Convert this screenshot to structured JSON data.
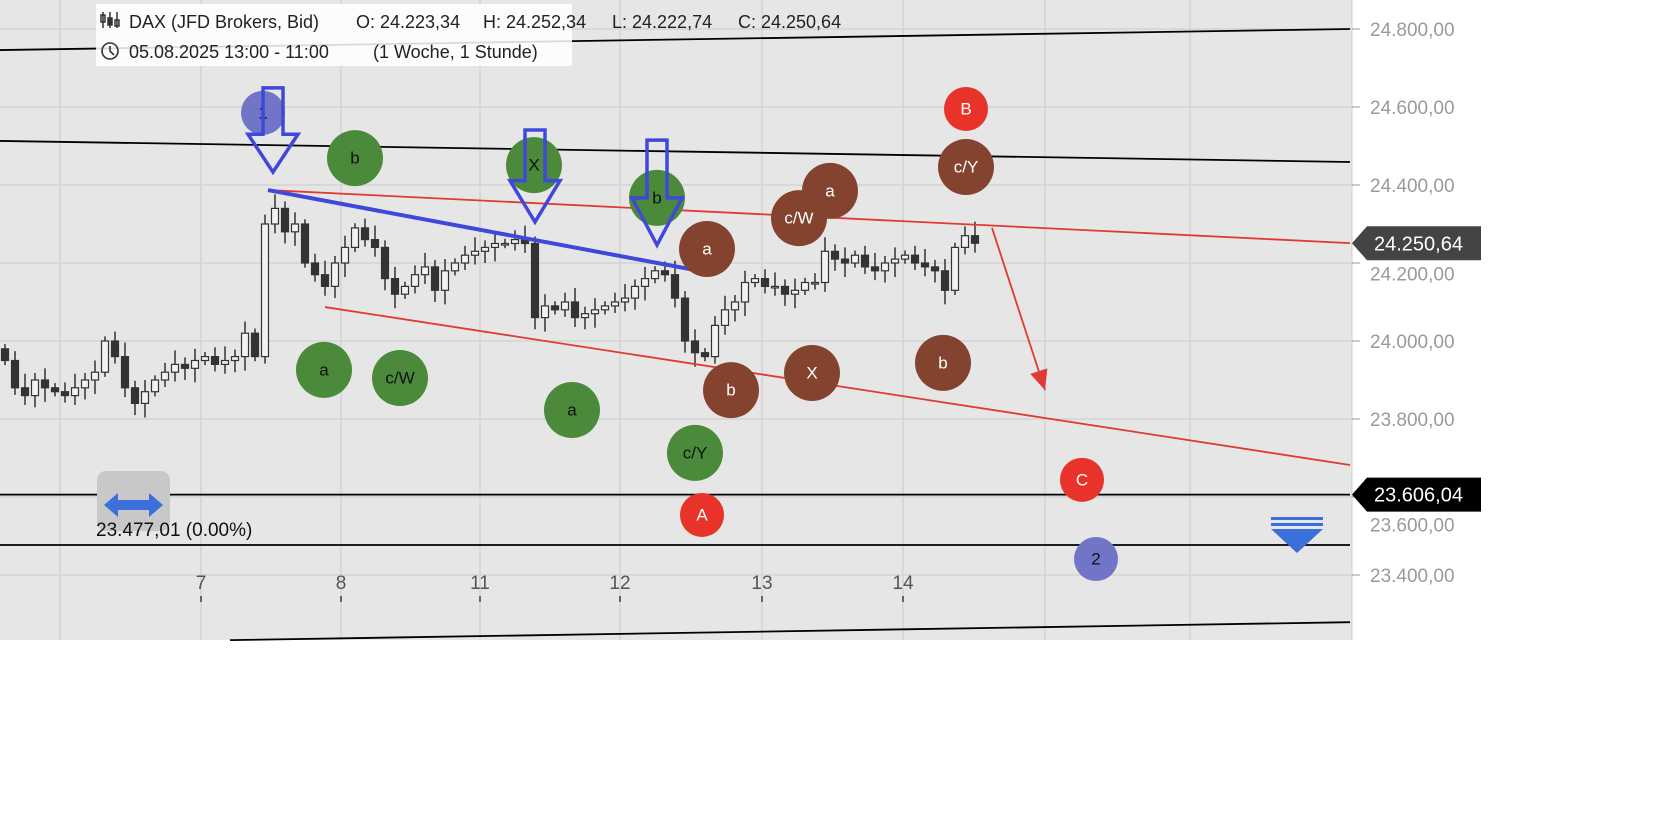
{
  "header": {
    "title": "DAX (JFD Brokers, Bid)",
    "open": "O: 24.223,34",
    "high": "H: 24.252,34",
    "low": "L: 24.222,74",
    "close": "C: 24.250,64",
    "range": "05.08.2025 13:00 - 11:00",
    "period": "(1 Woche, 1 Stunde)",
    "icons": [
      "candles-icon",
      "clock-icon"
    ]
  },
  "measure": {
    "label": "23.477,01 (0.00%)",
    "icon": "horizontal-double-arrow-icon"
  },
  "menu_icon": "collapse-menu-icon",
  "chart_data": {
    "type": "candlestick",
    "interval": "1 Stunde",
    "ylim": [
      23250,
      24830
    ],
    "y_ticks": [
      24800,
      24600,
      24400,
      24200,
      24000,
      23800,
      23600,
      23400
    ],
    "y_tick_labels": [
      "24.800,00",
      "24.600,00",
      "24.400,00",
      "24.200,00",
      "24.000,00",
      "23.800,00",
      "23.600,00",
      "23.400,00"
    ],
    "x_ticks": [
      {
        "label": "7",
        "index": 19.6
      },
      {
        "label": "8",
        "index": 33.6
      },
      {
        "label": "11",
        "index": 47.5
      },
      {
        "label": "12",
        "index": 61.5
      },
      {
        "label": "13",
        "index": 75.7
      },
      {
        "label": "14",
        "index": 89.8
      }
    ],
    "first_open": 23980,
    "closes": [
      23950,
      23880,
      23860,
      23900,
      23880,
      23870,
      23860,
      23880,
      23900,
      23920,
      24000,
      23960,
      23880,
      23840,
      23870,
      23900,
      23920,
      23940,
      23930,
      23950,
      23960,
      23940,
      23950,
      23960,
      24020,
      23960,
      24300,
      24340,
      24280,
      24300,
      24200,
      24170,
      24140,
      24200,
      24240,
      24290,
      24260,
      24240,
      24160,
      24120,
      24140,
      24170,
      24190,
      24130,
      24180,
      24200,
      24220,
      24230,
      24240,
      24250,
      24250,
      24260,
      24250,
      24060,
      24090,
      24080,
      24100,
      24060,
      24070,
      24080,
      24090,
      24100,
      24110,
      24140,
      24160,
      24180,
      24170,
      24110,
      24000,
      23970,
      23960,
      24040,
      24080,
      24100,
      24150,
      24160,
      24140,
      24140,
      24120,
      24130,
      24150,
      24150,
      24230,
      24210,
      24200,
      24220,
      24190,
      24180,
      24200,
      24210,
      24220,
      24200,
      24190,
      24180,
      24130,
      24240,
      24270,
      24250.64
    ],
    "price_tags": [
      {
        "value": 24250.64,
        "label": "24.250,64",
        "color": "#444444"
      },
      {
        "value": 23606.04,
        "label": "23.606,04",
        "color": "#000000"
      }
    ],
    "lines": [
      {
        "color": "#000000",
        "from": [
          -0.5,
          24746
        ],
        "to": [
          134.5,
          24800
        ]
      },
      {
        "color": "#000000",
        "from": [
          -0.5,
          24513
        ],
        "to": [
          134.5,
          24459
        ]
      },
      {
        "color": "#000000",
        "from": [
          -0.5,
          23606.04
        ],
        "to": [
          134.5,
          23606.04
        ]
      },
      {
        "color": "#000000",
        "from": [
          -0.5,
          23477.01
        ],
        "to": [
          134.5,
          23477.01
        ]
      },
      {
        "color": "#000000",
        "from": [
          22.5,
          23233
        ],
        "to": [
          134.5,
          23279
        ]
      },
      {
        "color": "#e03a32",
        "from": [
          26.3,
          24387
        ],
        "to": [
          134.5,
          24251
        ]
      },
      {
        "color": "#e03a32",
        "from": [
          32,
          24087
        ],
        "to": [
          134.5,
          23682
        ]
      },
      {
        "color": "#3f48d8",
        "from": [
          26.3,
          24387
        ],
        "to": [
          69,
          24182
        ],
        "width": 4
      }
    ],
    "forecast_arrow": {
      "color": "#e03a32",
      "from": [
        98.7,
        24290
      ],
      "to": [
        104,
        23874
      ]
    },
    "down_arrows": [
      {
        "index": 26.8,
        "top": 24649,
        "tip": 24433
      },
      {
        "index": 53,
        "top": 24541,
        "tip": 24305
      },
      {
        "index": 65.2,
        "top": 24515,
        "tip": 24246
      }
    ],
    "wave_labels": [
      {
        "text": "b",
        "index": 35,
        "price": 24469,
        "color": "#4a8a3a"
      },
      {
        "text": "X",
        "index": 52.9,
        "price": 24451,
        "color": "#4a8a3a"
      },
      {
        "text": "b",
        "index": 65.2,
        "price": 24367,
        "color": "#4a8a3a"
      },
      {
        "text": "a",
        "index": 31.9,
        "price": 23926,
        "color": "#4a8a3a"
      },
      {
        "text": "c/W",
        "index": 39.5,
        "price": 23905,
        "color": "#4a8a3a"
      },
      {
        "text": "a",
        "index": 56.7,
        "price": 23823,
        "color": "#4a8a3a"
      },
      {
        "text": "c/Y",
        "index": 69,
        "price": 23713,
        "color": "#4a8a3a"
      },
      {
        "text": "a",
        "index": 70.2,
        "price": 24236,
        "color": "#84432f"
      },
      {
        "text": "c/W",
        "index": 79.4,
        "price": 24315,
        "color": "#84432f"
      },
      {
        "text": "a",
        "index": 82.5,
        "price": 24385,
        "color": "#84432f"
      },
      {
        "text": "c/Y",
        "index": 96.1,
        "price": 24446,
        "color": "#84432f"
      },
      {
        "text": "b",
        "index": 72.6,
        "price": 23874,
        "color": "#84432f"
      },
      {
        "text": "X",
        "index": 80.7,
        "price": 23918,
        "color": "#84432f"
      },
      {
        "text": "b",
        "index": 93.8,
        "price": 23944,
        "color": "#84432f"
      },
      {
        "text": "B",
        "index": 96.1,
        "price": 24595,
        "color": "#e8332a"
      },
      {
        "text": "C",
        "index": 107.7,
        "price": 23644,
        "color": "#e8332a"
      },
      {
        "text": "A",
        "index": 69.7,
        "price": 23554,
        "color": "#e8332a"
      },
      {
        "text": "1",
        "index": 25.8,
        "price": 24585,
        "color": "#7075c8"
      },
      {
        "text": "2",
        "index": 109.1,
        "price": 23441,
        "color": "#7075c8"
      }
    ]
  }
}
